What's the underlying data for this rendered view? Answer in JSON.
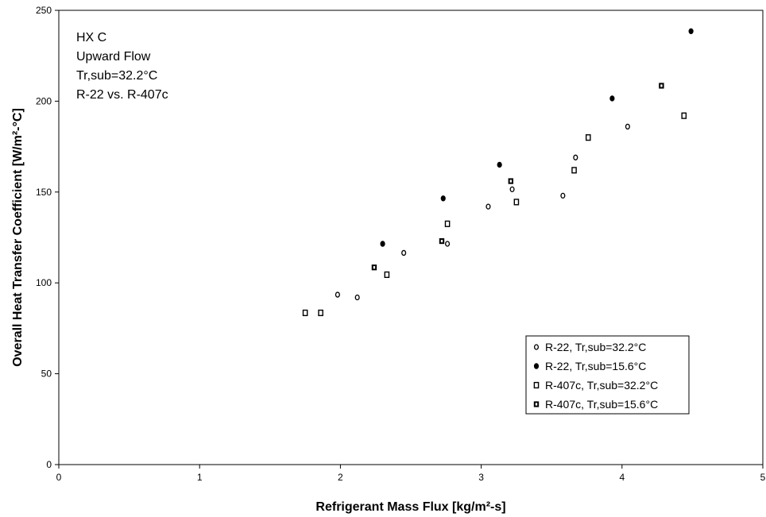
{
  "chart_data": {
    "type": "scatter",
    "title": "",
    "xlabel": "Refrigerant Mass Flux [kg/m²-s]",
    "ylabel": "Overall Heat Transfer Coefficient [W/m²-°C]",
    "xlim": [
      0,
      5
    ],
    "ylim": [
      0,
      250
    ],
    "xticks": [
      0,
      1,
      2,
      3,
      4,
      5
    ],
    "yticks": [
      0,
      50,
      100,
      150,
      200,
      250
    ],
    "grid": false,
    "legend_position": "bottom-right",
    "annotation": [
      "HX C",
      "Upward Flow",
      "Tr,sub=32.2°C",
      "R-22 vs. R-407c"
    ],
    "series": [
      {
        "name": "R-22, Tr,sub=32.2°C",
        "marker": "open-circle",
        "points": [
          [
            1.98,
            93.5
          ],
          [
            2.12,
            92
          ],
          [
            2.45,
            116.5
          ],
          [
            2.76,
            121.5
          ],
          [
            3.05,
            142
          ],
          [
            3.22,
            151.5
          ],
          [
            3.58,
            148
          ],
          [
            3.67,
            169
          ],
          [
            4.04,
            186
          ]
        ]
      },
      {
        "name": "R-22, Tr,sub=15.6°C",
        "marker": "filled-circle",
        "points": [
          [
            2.3,
            121.5
          ],
          [
            2.73,
            146.5
          ],
          [
            3.13,
            165
          ],
          [
            3.93,
            201.5
          ],
          [
            4.49,
            238.5
          ]
        ]
      },
      {
        "name": "R-407c, Tr,sub=32.2°C",
        "marker": "open-square",
        "points": [
          [
            1.75,
            83.5
          ],
          [
            1.86,
            83.5
          ],
          [
            2.33,
            104.5
          ],
          [
            2.76,
            132.5
          ],
          [
            3.25,
            144.5
          ],
          [
            3.66,
            162
          ],
          [
            3.76,
            180
          ],
          [
            4.44,
            192
          ]
        ]
      },
      {
        "name": "R-407c, Tr,sub=15.6°C",
        "marker": "dot-square",
        "points": [
          [
            2.24,
            108.5
          ],
          [
            2.72,
            123
          ],
          [
            3.21,
            156
          ],
          [
            4.28,
            208.5
          ]
        ]
      }
    ]
  }
}
